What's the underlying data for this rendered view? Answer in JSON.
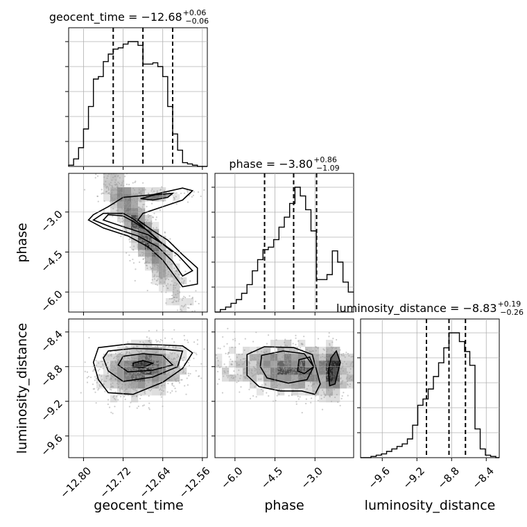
{
  "chart_data": {
    "type": "corner",
    "parameters": [
      "geocent_time",
      "phase",
      "luminosity_distance"
    ],
    "titles": [
      {
        "param": "geocent_time",
        "prefix": "geocent_time = −12.68",
        "plus": "+0.06",
        "minus": "−0.06"
      },
      {
        "param": "phase",
        "prefix": "phase = −3.80",
        "plus": "+0.86",
        "minus": "−1.09"
      },
      {
        "param": "luminosity_distance",
        "prefix": "luminosity_distance = −8.83",
        "plus": "+0.19",
        "minus": "−0.26"
      }
    ],
    "ranges": {
      "geocent_time": [
        -12.83,
        -12.55
      ],
      "phase": [
        -6.75,
        -1.55
      ],
      "luminosity_distance": [
        -9.85,
        -8.25
      ]
    },
    "ticks": {
      "geocent_time": {
        "values": [
          -12.8,
          -12.72,
          -12.64,
          -12.56
        ],
        "labels": [
          "−12.80",
          "−12.72",
          "−12.64",
          "−12.56"
        ]
      },
      "phase": {
        "values": [
          -6.0,
          -4.5,
          -3.0
        ],
        "labels": [
          "−6.0",
          "−4.5",
          "−3.0"
        ]
      },
      "luminosity_distance": {
        "values": [
          -9.6,
          -9.2,
          -8.8,
          -8.4
        ],
        "labels": [
          "−9.6",
          "−9.2",
          "−8.8",
          "−8.4"
        ]
      }
    },
    "quantiles": {
      "geocent_time": [
        -12.74,
        -12.68,
        -12.62
      ],
      "phase": [
        -4.89,
        -3.8,
        -2.94
      ],
      "luminosity_distance": [
        -9.09,
        -8.83,
        -8.64
      ]
    },
    "histograms": {
      "geocent_time": {
        "edges": [
          -12.83,
          -12.82,
          -12.81,
          -12.8,
          -12.79,
          -12.78,
          -12.77,
          -12.76,
          -12.75,
          -12.74,
          -12.73,
          -12.72,
          -12.71,
          -12.7,
          -12.69,
          -12.68,
          -12.67,
          -12.66,
          -12.65,
          -12.64,
          -12.63,
          -12.62,
          -12.61,
          -12.6,
          -12.59,
          -12.58,
          -12.57,
          -12.56,
          -12.55
        ],
        "counts": [
          0.01,
          0.06,
          0.15,
          0.3,
          0.48,
          0.7,
          0.72,
          0.84,
          0.9,
          0.94,
          0.95,
          0.98,
          1.0,
          1.0,
          0.97,
          0.82,
          0.82,
          0.83,
          0.8,
          0.72,
          0.48,
          0.26,
          0.13,
          0.03,
          0.02,
          0.01,
          0.0,
          0.0
        ]
      },
      "phase": {
        "edges": [
          -6.75,
          -6.55,
          -6.35,
          -6.15,
          -5.95,
          -5.75,
          -5.55,
          -5.35,
          -5.15,
          -4.95,
          -4.75,
          -4.55,
          -4.35,
          -4.15,
          -3.95,
          -3.75,
          -3.55,
          -3.35,
          -3.15,
          -2.95,
          -2.75,
          -2.55,
          -2.35,
          -2.15,
          -1.95,
          -1.75,
          -1.55
        ],
        "counts": [
          0.0,
          0.02,
          0.04,
          0.07,
          0.1,
          0.15,
          0.22,
          0.33,
          0.42,
          0.5,
          0.52,
          0.58,
          0.68,
          0.76,
          0.87,
          1.0,
          0.93,
          0.82,
          0.65,
          0.26,
          0.26,
          0.3,
          0.49,
          0.4,
          0.24,
          0.16
        ]
      },
      "luminosity_distance": {
        "edges": [
          -9.85,
          -9.79,
          -9.73,
          -9.67,
          -9.61,
          -9.55,
          -9.49,
          -9.43,
          -9.37,
          -9.31,
          -9.25,
          -9.19,
          -9.13,
          -9.07,
          -9.01,
          -8.95,
          -8.89,
          -8.83,
          -8.77,
          -8.71,
          -8.65,
          -8.59,
          -8.53,
          -8.47,
          -8.41,
          -8.35,
          -8.29,
          -8.25
        ],
        "counts": [
          0.0,
          0.0,
          0.01,
          0.02,
          0.03,
          0.05,
          0.07,
          0.09,
          0.11,
          0.15,
          0.26,
          0.42,
          0.47,
          0.55,
          0.65,
          0.76,
          0.88,
          1.0,
          1.0,
          0.93,
          0.85,
          0.74,
          0.23,
          0.07,
          0.02,
          0.01,
          0.0
        ]
      }
    },
    "contours": [
      {
        "x": "geocent_time",
        "y": "phase",
        "levels": [
          [
            [
              -12.6,
              -2.1
            ],
            [
              -12.66,
              -2.35
            ],
            [
              -12.72,
              -2.45
            ],
            [
              -12.75,
              -2.8
            ],
            [
              -12.78,
              -3.1
            ],
            [
              -12.79,
              -3.3
            ],
            [
              -12.76,
              -3.6
            ],
            [
              -12.71,
              -3.9
            ],
            [
              -12.67,
              -4.3
            ],
            [
              -12.64,
              -4.8
            ],
            [
              -12.62,
              -5.3
            ],
            [
              -12.6,
              -5.8
            ],
            [
              -12.57,
              -5.7
            ],
            [
              -12.57,
              -5.1
            ],
            [
              -12.6,
              -4.6
            ],
            [
              -12.63,
              -4.05
            ],
            [
              -12.66,
              -3.7
            ],
            [
              -12.69,
              -3.3
            ],
            [
              -12.68,
              -3.05
            ],
            [
              -12.64,
              -2.8
            ],
            [
              -12.6,
              -2.55
            ],
            [
              -12.58,
              -2.2
            ]
          ],
          [
            [
              -12.76,
              -3.05
            ],
            [
              -12.78,
              -3.3
            ],
            [
              -12.74,
              -3.6
            ],
            [
              -12.69,
              -3.9
            ],
            [
              -12.65,
              -4.3
            ],
            [
              -12.62,
              -4.85
            ],
            [
              -12.6,
              -5.4
            ],
            [
              -12.58,
              -5.2
            ],
            [
              -12.61,
              -4.6
            ],
            [
              -12.65,
              -4.05
            ],
            [
              -12.68,
              -3.55
            ],
            [
              -12.7,
              -3.25
            ],
            [
              -12.72,
              -3.05
            ]
          ],
          [
            [
              -12.75,
              -3.1
            ],
            [
              -12.76,
              -3.3
            ],
            [
              -12.72,
              -3.55
            ],
            [
              -12.67,
              -3.85
            ],
            [
              -12.64,
              -4.2
            ],
            [
              -12.62,
              -4.5
            ],
            [
              -12.64,
              -4.2
            ],
            [
              -12.67,
              -3.7
            ],
            [
              -12.7,
              -3.35
            ],
            [
              -12.72,
              -3.15
            ]
          ],
          [
            [
              -12.685,
              -2.5
            ],
            [
              -12.655,
              -2.35
            ],
            [
              -12.62,
              -2.3
            ],
            [
              -12.63,
              -2.45
            ],
            [
              -12.66,
              -2.55
            ]
          ]
        ]
      },
      {
        "x": "geocent_time",
        "y": "luminosity_distance",
        "levels": [
          [
            [
              -12.77,
              -8.58
            ],
            [
              -12.71,
              -8.54
            ],
            [
              -12.64,
              -8.55
            ],
            [
              -12.6,
              -8.56
            ],
            [
              -12.58,
              -8.64
            ],
            [
              -12.6,
              -8.82
            ],
            [
              -12.64,
              -8.98
            ],
            [
              -12.7,
              -9.12
            ],
            [
              -12.75,
              -9.1
            ],
            [
              -12.77,
              -8.95
            ],
            [
              -12.78,
              -8.75
            ]
          ],
          [
            [
              -12.75,
              -8.62
            ],
            [
              -12.7,
              -8.59
            ],
            [
              -12.64,
              -8.6
            ],
            [
              -12.6,
              -8.62
            ],
            [
              -12.61,
              -8.8
            ],
            [
              -12.66,
              -8.92
            ],
            [
              -12.72,
              -8.97
            ],
            [
              -12.75,
              -8.85
            ],
            [
              -12.76,
              -8.7
            ]
          ],
          [
            [
              -12.72,
              -8.68
            ],
            [
              -12.68,
              -8.65
            ],
            [
              -12.64,
              -8.67
            ],
            [
              -12.62,
              -8.78
            ],
            [
              -12.66,
              -8.84
            ],
            [
              -12.71,
              -8.86
            ],
            [
              -12.73,
              -8.78
            ]
          ],
          [
            [
              -12.7,
              -8.76
            ],
            [
              -12.68,
              -8.73
            ],
            [
              -12.66,
              -8.76
            ],
            [
              -12.68,
              -8.81
            ],
            [
              -12.7,
              -8.8
            ]
          ]
        ]
      },
      {
        "x": "phase",
        "y": "luminosity_distance",
        "levels": [
          [
            [
              -5.55,
              -8.66
            ],
            [
              -4.9,
              -8.57
            ],
            [
              -3.8,
              -8.58
            ],
            [
              -3.1,
              -8.66
            ],
            [
              -2.8,
              -9.0
            ],
            [
              -3.0,
              -9.12
            ],
            [
              -3.5,
              -9.08
            ],
            [
              -4.3,
              -9.08
            ],
            [
              -5.1,
              -9.03
            ],
            [
              -5.55,
              -8.9
            ]
          ],
          [
            [
              -5.0,
              -8.67
            ],
            [
              -4.2,
              -8.62
            ],
            [
              -3.4,
              -8.65
            ],
            [
              -3.05,
              -8.8
            ],
            [
              -3.3,
              -8.95
            ],
            [
              -4.0,
              -8.99
            ],
            [
              -4.8,
              -8.93
            ],
            [
              -5.05,
              -8.8
            ]
          ],
          [
            [
              -3.6,
              -8.72
            ],
            [
              -3.2,
              -8.69
            ],
            [
              -3.05,
              -8.8
            ],
            [
              -3.4,
              -8.88
            ],
            [
              -3.65,
              -8.85
            ]
          ],
          [
            [
              -2.4,
              -8.7
            ],
            [
              -2.2,
              -8.62
            ],
            [
              -2.05,
              -8.75
            ],
            [
              -2.25,
              -9.0
            ],
            [
              -2.45,
              -9.02
            ],
            [
              -2.5,
              -8.85
            ]
          ]
        ]
      }
    ],
    "scatter_points": 3000,
    "grid": true
  }
}
